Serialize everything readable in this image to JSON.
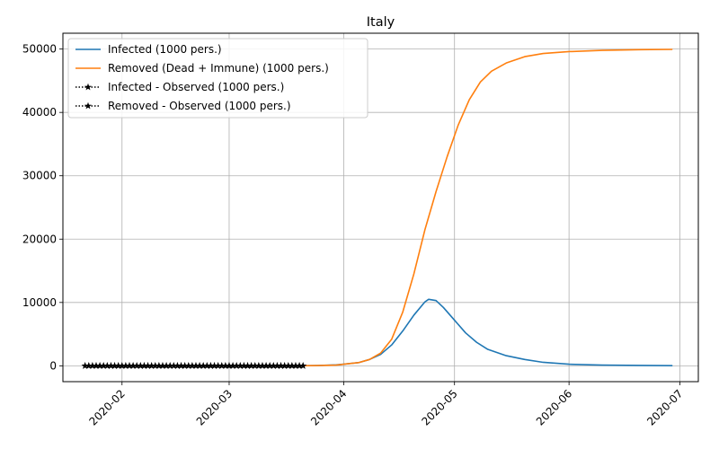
{
  "chart_data": {
    "type": "line",
    "title": "Italy",
    "xlabel": "",
    "ylabel": "",
    "x_type": "date",
    "xlim": [
      "2020-01-16",
      "2020-07-06"
    ],
    "ylim": [
      -2500,
      52500
    ],
    "grid": true,
    "legend_position": "top-left",
    "x_ticks": [
      "2020-02",
      "2020-03",
      "2020-04",
      "2020-05",
      "2020-06",
      "2020-07"
    ],
    "y_ticks": [
      0,
      10000,
      20000,
      30000,
      40000,
      50000
    ],
    "series": [
      {
        "name": "Infected (1000 pers.)",
        "color": "#1f77b4",
        "style": "solid",
        "points": [
          [
            "2020-03-20",
            0
          ],
          [
            "2020-03-25",
            50
          ],
          [
            "2020-03-30",
            150
          ],
          [
            "2020-04-01",
            260
          ],
          [
            "2020-04-05",
            500
          ],
          [
            "2020-04-08",
            1000
          ],
          [
            "2020-04-11",
            1800
          ],
          [
            "2020-04-14",
            3300
          ],
          [
            "2020-04-17",
            5500
          ],
          [
            "2020-04-20",
            8000
          ],
          [
            "2020-04-23",
            10100
          ],
          [
            "2020-04-24",
            10500
          ],
          [
            "2020-04-26",
            10300
          ],
          [
            "2020-04-28",
            9200
          ],
          [
            "2020-05-01",
            7200
          ],
          [
            "2020-05-04",
            5200
          ],
          [
            "2020-05-07",
            3700
          ],
          [
            "2020-05-10",
            2600
          ],
          [
            "2020-05-15",
            1600
          ],
          [
            "2020-05-20",
            1000
          ],
          [
            "2020-05-25",
            550
          ],
          [
            "2020-06-01",
            250
          ],
          [
            "2020-06-10",
            120
          ],
          [
            "2020-06-20",
            60
          ],
          [
            "2020-06-29",
            30
          ]
        ]
      },
      {
        "name": "Removed (Dead + Immune) (1000 pers.)",
        "color": "#ff7f0e",
        "style": "solid",
        "points": [
          [
            "2020-03-20",
            0
          ],
          [
            "2020-03-25",
            40
          ],
          [
            "2020-03-30",
            120
          ],
          [
            "2020-04-01",
            250
          ],
          [
            "2020-04-05",
            500
          ],
          [
            "2020-04-08",
            1000
          ],
          [
            "2020-04-11",
            2000
          ],
          [
            "2020-04-14",
            4200
          ],
          [
            "2020-04-17",
            8500
          ],
          [
            "2020-04-20",
            14500
          ],
          [
            "2020-04-23",
            21500
          ],
          [
            "2020-04-26",
            27500
          ],
          [
            "2020-04-29",
            33000
          ],
          [
            "2020-05-02",
            38000
          ],
          [
            "2020-05-05",
            42000
          ],
          [
            "2020-05-08",
            44800
          ],
          [
            "2020-05-11",
            46500
          ],
          [
            "2020-05-15",
            47800
          ],
          [
            "2020-05-20",
            48800
          ],
          [
            "2020-05-25",
            49300
          ],
          [
            "2020-06-01",
            49600
          ],
          [
            "2020-06-10",
            49800
          ],
          [
            "2020-06-20",
            49900
          ],
          [
            "2020-06-29",
            49950
          ]
        ]
      },
      {
        "name": "Infected - Observed (1000 pers.)",
        "color": "#000000",
        "style": "dotted-star",
        "x_start": "2020-01-22",
        "x_end": "2020-03-21",
        "value": 0
      },
      {
        "name": "Removed - Observed (1000 pers.)",
        "color": "#000000",
        "style": "dotted-star",
        "x_start": "2020-01-22",
        "x_end": "2020-03-21",
        "value": 0
      }
    ]
  }
}
